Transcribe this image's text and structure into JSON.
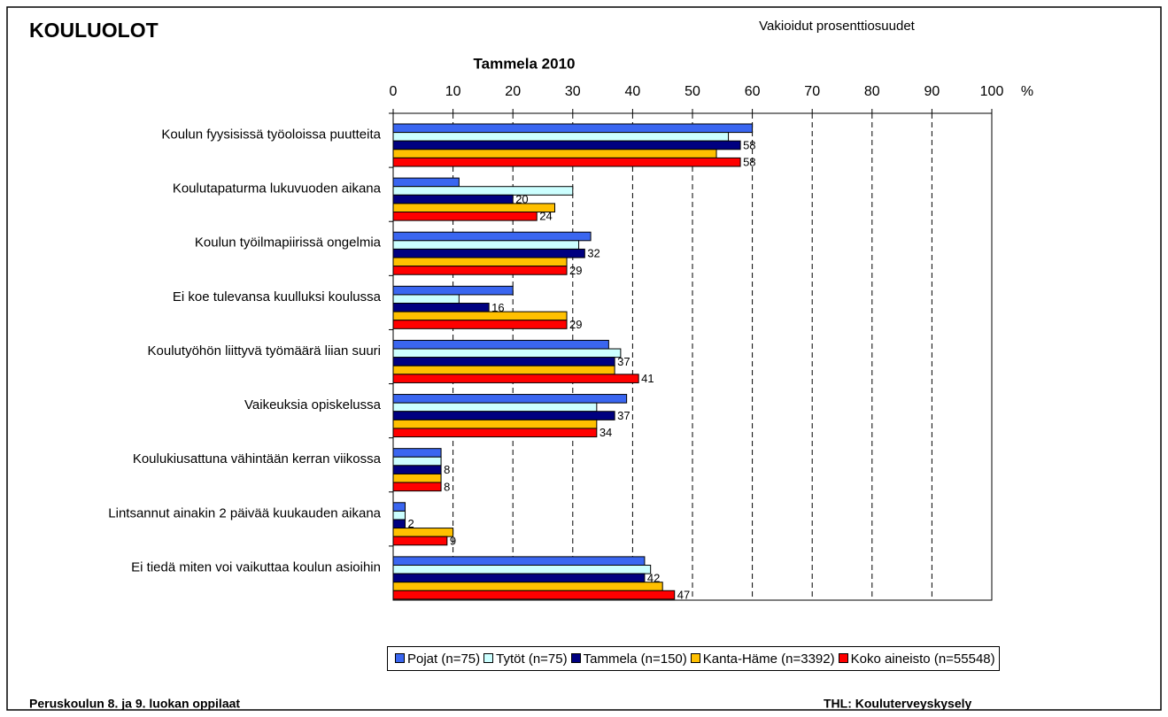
{
  "chart_data": {
    "type": "barh",
    "title": "KOULUOLOT",
    "subtitle": "Vakioidut prosenttiosuudet",
    "chart_title": "Tammela 2010",
    "x_unit": "%",
    "footer_left": "Peruskoulun 8. ja 9. luokan oppilaat",
    "footer_right": "THL: Kouluterveyskysely",
    "categories": [
      "Koulun fyysisissä työoloissa puutteita",
      "Koulutapaturma lukuvuoden aikana",
      "Koulun työilmapiirissä ongelmia",
      "Ei koe tulevansa kuulluksi koulussa",
      "Koulutyöhön liittyvä työmäärä liian suuri",
      "Vaikeuksia opiskelussa",
      "Koulukiusattuna vähintään kerran viikossa",
      "Lintsannut ainakin 2 päivää kuukauden aikana",
      "Ei tiedä miten voi vaikuttaa koulun asioihin"
    ],
    "series": [
      {
        "name": "Pojat (n=75)",
        "color": "#3a66f0",
        "values": [
          60,
          11,
          33,
          20,
          36,
          39,
          8,
          2,
          42
        ]
      },
      {
        "name": "Tytöt (n=75)",
        "color": "#ccffff",
        "values": [
          56,
          30,
          31,
          11,
          38,
          34,
          8,
          2,
          43
        ]
      },
      {
        "name": "Tammela (n=150)",
        "color": "#000080",
        "labels": true,
        "values": [
          58,
          20,
          32,
          16,
          37,
          37,
          8,
          2,
          42
        ]
      },
      {
        "name": "Kanta-Häme (n=3392)",
        "color": "#ffc000",
        "values": [
          54,
          27,
          29,
          29,
          37,
          34,
          8,
          10,
          45
        ]
      },
      {
        "name": "Koko aineisto (n=55548)",
        "color": "#ff0000",
        "labels": true,
        "values": [
          58,
          24,
          29,
          29,
          41,
          34,
          8,
          9,
          47
        ]
      }
    ],
    "xlim": [
      0,
      100
    ],
    "xticks": [
      0,
      10,
      20,
      30,
      40,
      50,
      60,
      70,
      80,
      90,
      100
    ],
    "grid": true
  }
}
